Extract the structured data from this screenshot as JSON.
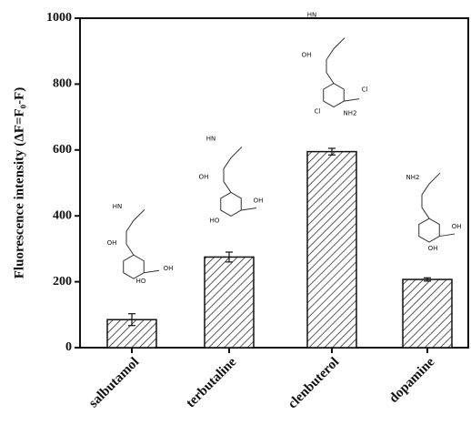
{
  "chart_data": {
    "type": "bar",
    "y_label": "Fluorescence intensity (ΔF=F₀-F)",
    "categories": [
      "salbutamol",
      "terbutaline",
      "clenbuterol",
      "dopamine"
    ],
    "values": [
      85,
      275,
      595,
      207
    ],
    "errors": [
      18,
      15,
      10,
      5
    ],
    "color": "#333333",
    "ylim": [
      0,
      1000
    ],
    "yticks": [
      0,
      200,
      400,
      600,
      800,
      1000
    ],
    "structure_labels": [
      [
        "HN",
        "OH",
        "HO",
        "OH"
      ],
      [
        "HN",
        "OH",
        "OH",
        "HO"
      ],
      [
        "HN",
        "OH",
        "Cl",
        "Cl",
        "NH2"
      ],
      [
        "NH2",
        "OH",
        "OH"
      ]
    ]
  }
}
